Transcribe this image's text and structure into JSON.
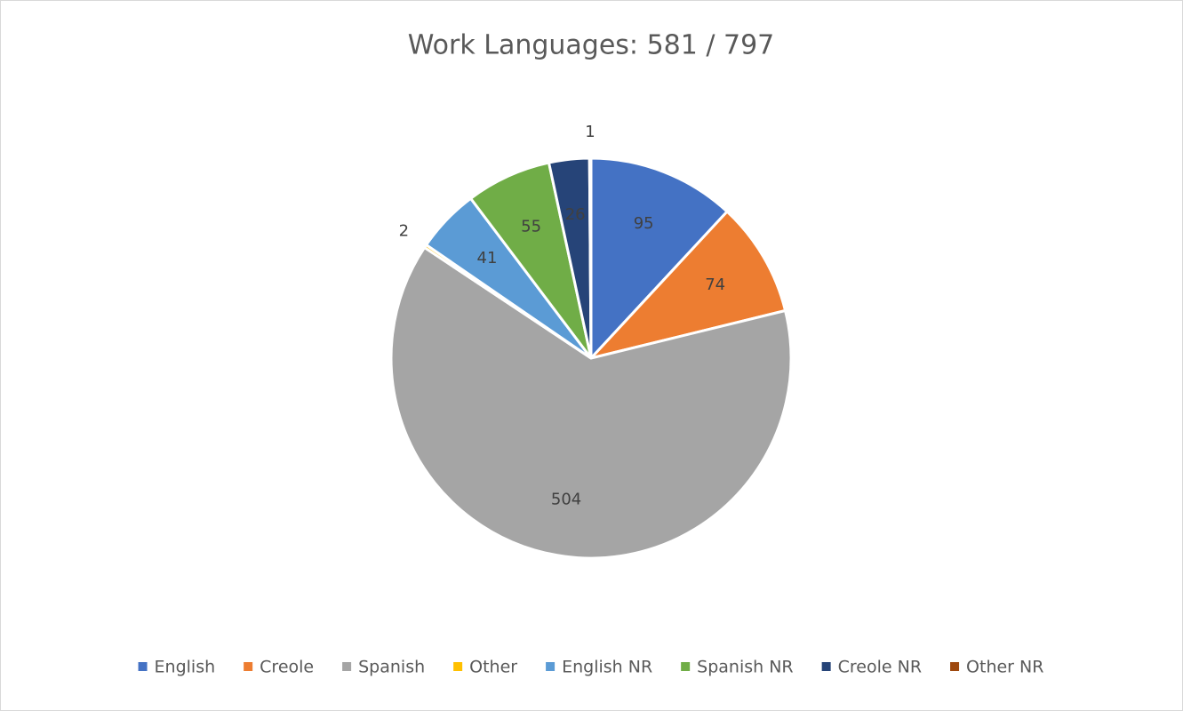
{
  "chart_data": {
    "type": "pie",
    "title": "Work Languages: 581 / 797",
    "categories": [
      "English",
      "Creole",
      "Spanish",
      "Other",
      "English NR",
      "Spanish NR",
      "Creole NR",
      "Other NR"
    ],
    "values": [
      95,
      74,
      504,
      2,
      41,
      55,
      26,
      1
    ],
    "colors": [
      "#4472c4",
      "#ed7d31",
      "#a5a5a5",
      "#ffc000",
      "#5b9bd5",
      "#70ad47",
      "#264478",
      "#9e480e"
    ],
    "legend": "bottom"
  }
}
